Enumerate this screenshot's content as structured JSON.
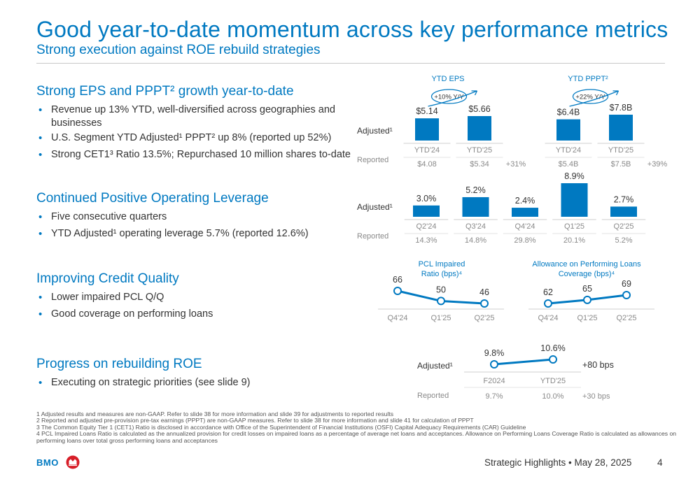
{
  "header": {
    "title": "Good year-to-date momentum across key performance metrics",
    "subtitle": "Strong execution against ROE rebuild strategies"
  },
  "sections": [
    {
      "heading": "Strong EPS and PPPT² growth year-to-date",
      "bullets": [
        "Revenue up 13% YTD, well-diversified across geographies and businesses",
        "U.S. Segment YTD Adjusted¹ PPPT² up 8% (reported up 52%)",
        "Strong CET1³ Ratio 13.5%; Repurchased 10 million shares to-date"
      ]
    },
    {
      "heading": "Continued Positive Operating Leverage",
      "bullets": [
        "Five consecutive quarters",
        "YTD Adjusted¹ operating leverage 5.7% (reported 12.6%)"
      ]
    },
    {
      "heading": "Improving Credit Quality",
      "bullets": [
        "Lower impaired PCL Q/Q",
        "Good coverage on performing loans"
      ]
    },
    {
      "heading": "Progress on rebuilding ROE",
      "bullets": [
        "Executing on strategic priorities (see slide 9)"
      ]
    }
  ],
  "labels": {
    "adjusted": "Adjusted¹",
    "reported": "Reported"
  },
  "chart_data": [
    {
      "type": "bar",
      "title": "YTD EPS",
      "categories": [
        "YTD'24",
        "YTD'25"
      ],
      "values": [
        5.14,
        5.66
      ],
      "value_labels": [
        "$5.14",
        "$5.66"
      ],
      "reported": [
        "$4.08",
        "$5.34"
      ],
      "reported_change": "+31%",
      "growth_badge": "+10% Y/Y",
      "color": "#0079c1"
    },
    {
      "type": "bar",
      "title": "YTD PPPT²",
      "categories": [
        "YTD'24",
        "YTD'25"
      ],
      "values": [
        6.4,
        7.8
      ],
      "value_labels": [
        "$6.4B",
        "$7.8B"
      ],
      "reported": [
        "$5.4B",
        "$7.5B"
      ],
      "reported_change": "+39%",
      "growth_badge": "+22% Y/Y",
      "color": "#0079c1"
    },
    {
      "type": "bar",
      "title": "",
      "categories": [
        "Q2'24",
        "Q3'24",
        "Q4'24",
        "Q1'25",
        "Q2'25"
      ],
      "values": [
        3.0,
        5.2,
        2.4,
        8.9,
        2.7
      ],
      "value_labels": [
        "3.0%",
        "5.2%",
        "2.4%",
        "8.9%",
        "2.7%"
      ],
      "reported": [
        "14.3%",
        "14.8%",
        "29.8%",
        "20.1%",
        "5.2%"
      ],
      "color": "#0079c1"
    },
    {
      "type": "line",
      "title": "PCL Impaired Ratio (bps)⁴",
      "title_lines": [
        "PCL Impaired",
        "Ratio (bps)⁴"
      ],
      "categories": [
        "Q4'24",
        "Q1'25",
        "Q2'25"
      ],
      "values": [
        66,
        50,
        46
      ],
      "color": "#0079c1"
    },
    {
      "type": "line",
      "title": "Allowance on Performing Loans Coverage (bps)⁴",
      "title_lines": [
        "Allowance on Performing Loans",
        "Coverage (bps)⁴"
      ],
      "categories": [
        "Q4'24",
        "Q1'25",
        "Q2'25"
      ],
      "values": [
        62,
        65,
        69
      ],
      "color": "#0079c1"
    },
    {
      "type": "line",
      "title": "",
      "categories": [
        "F2024",
        "YTD'25"
      ],
      "values": [
        9.8,
        10.6
      ],
      "value_labels": [
        "9.8%",
        "10.6%"
      ],
      "reported": [
        "9.7%",
        "10.0%"
      ],
      "change": "+80 bps",
      "reported_change": "+30 bps",
      "color": "#0079c1"
    }
  ],
  "footnotes": [
    "1  Adjusted results and measures are non-GAAP. Refer to slide 38 for more information and slide 39 for adjustments to reported results",
    "2  Reported and adjusted pre-provision pre-tax earnings (PPPT) are non-GAAP measures. Refer to slide 38 for more information and slide 41 for calculation of PPPT",
    "3  The Common Equity Tier 1 (CET1) Ratio is disclosed in accordance with Office of the Superintendent of Financial Institutions (OSFI) Capital Adequacy Requirements (CAR) Guideline",
    "4  PCL Impaired Loans Ratio is calculated as the annualized provision for credit losses on impaired loans as a percentage of average net loans and acceptances. Allowance on Performing Loans Coverage Ratio is calculated as allowances on performing loans over total gross performing loans and acceptances"
  ],
  "footer": {
    "logo_text": "BMO",
    "text": "Strategic Highlights • May 28, 2025",
    "page": "4"
  },
  "colors": {
    "accent": "#0079c1",
    "muted": "#8a8a8a"
  }
}
